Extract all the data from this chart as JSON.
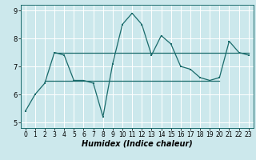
{
  "title": "",
  "xlabel": "Humidex (Indice chaleur)",
  "bg_color": "#cce8ec",
  "line_color": "#1a6b6b",
  "grid_color": "#ffffff",
  "xlim": [
    -0.5,
    23.5
  ],
  "ylim": [
    4.8,
    9.2
  ],
  "yticks": [
    5,
    6,
    7,
    8,
    9
  ],
  "xticks": [
    0,
    1,
    2,
    3,
    4,
    5,
    6,
    7,
    8,
    9,
    10,
    11,
    12,
    13,
    14,
    15,
    16,
    17,
    18,
    19,
    20,
    21,
    22,
    23
  ],
  "line1_x": [
    0,
    1,
    2,
    3,
    4,
    5,
    6,
    7,
    8,
    9,
    10,
    11,
    12,
    13,
    14,
    15,
    16,
    17,
    18,
    19,
    20,
    21,
    22,
    23
  ],
  "line1_y": [
    5.4,
    6.0,
    6.4,
    7.5,
    7.4,
    6.5,
    6.5,
    6.4,
    5.2,
    7.1,
    8.5,
    8.9,
    8.5,
    7.4,
    8.1,
    7.8,
    7.0,
    6.9,
    6.6,
    6.5,
    6.6,
    7.9,
    7.5,
    7.4
  ],
  "line2_x": [
    3,
    4,
    9,
    10,
    13,
    14,
    19,
    20,
    23
  ],
  "line2_y": [
    7.5,
    7.5,
    7.5,
    7.5,
    7.5,
    7.5,
    7.5,
    7.5,
    7.5
  ],
  "line3_x": [
    2,
    3,
    5,
    6,
    7,
    8,
    9,
    10,
    18,
    19,
    20
  ],
  "line3_y": [
    6.5,
    6.5,
    6.5,
    6.5,
    6.5,
    6.5,
    6.5,
    6.5,
    6.5,
    6.5,
    6.5
  ],
  "tick_fontsize": 6,
  "xlabel_fontsize": 7
}
